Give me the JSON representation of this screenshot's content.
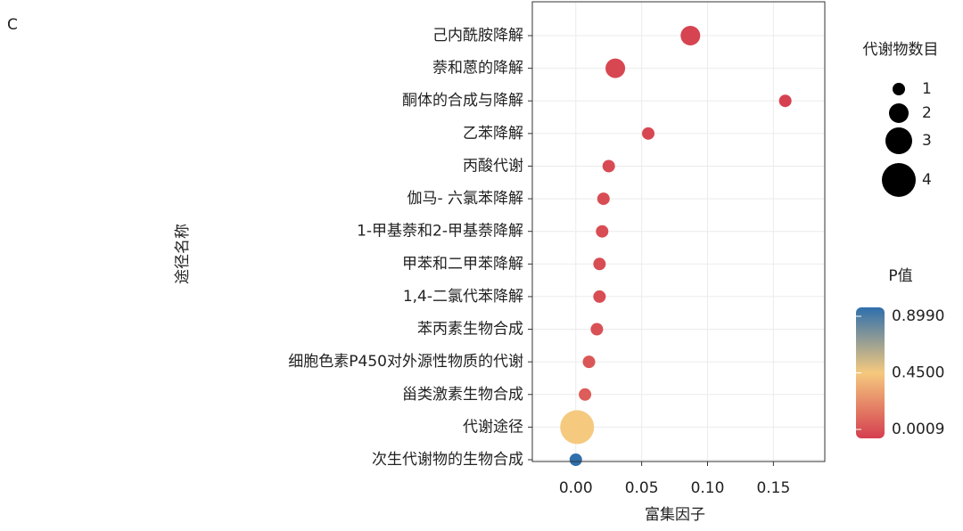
{
  "chart_data": {
    "type": "bubble",
    "panel_label": "C",
    "xlabel": "富集因子",
    "ylabel": "途径名称",
    "categories": [
      "己内酰胺降解",
      "萘和蒽的降解",
      "酮体的合成与降解",
      "乙苯降解",
      "丙酸代谢",
      "伽马- 六氯苯降解",
      "1-甲基萘和2-甲基萘降解",
      "甲苯和二甲苯降解",
      "1,4-二氯代苯降解",
      "苯丙素生物合成",
      "细胞色素P450对外源性物质的代谢",
      "甾类激素生物合成",
      "代谢途径",
      "次生代谢物的生物合成"
    ],
    "values": [
      0.087,
      0.03,
      0.159,
      0.055,
      0.025,
      0.021,
      0.02,
      0.018,
      0.018,
      0.016,
      0.01,
      0.007,
      0.001,
      0.0
    ],
    "sizes": [
      2,
      2,
      1,
      1,
      1,
      1,
      1,
      1,
      1,
      1,
      1,
      1,
      4,
      1
    ],
    "pvalues": [
      0.02,
      0.03,
      0.01,
      0.03,
      0.04,
      0.05,
      0.05,
      0.05,
      0.05,
      0.06,
      0.08,
      0.1,
      0.45,
      0.899
    ],
    "xlim": [
      -0.033,
      0.189
    ],
    "xticks": [
      {
        "value": 0,
        "label": "0.00"
      },
      {
        "value": 0.05,
        "label": "0.05"
      },
      {
        "value": 0.1,
        "label": "0.10"
      },
      {
        "value": 0.15,
        "label": "0.15"
      }
    ],
    "grid": true,
    "size_legend": {
      "title": "代谢物数目",
      "values": [
        1,
        2,
        3,
        4
      ]
    },
    "color_legend": {
      "title": "P值",
      "lim": [
        0.0009,
        0.899
      ],
      "ticks": [
        {
          "value": 0.899,
          "label": "0.8990"
        },
        {
          "value": 0.45,
          "label": "0.4500"
        },
        0.0009
      ],
      "colors": [
        "#d53e4f",
        "#f5c97e",
        "#2f6fac"
      ]
    }
  }
}
